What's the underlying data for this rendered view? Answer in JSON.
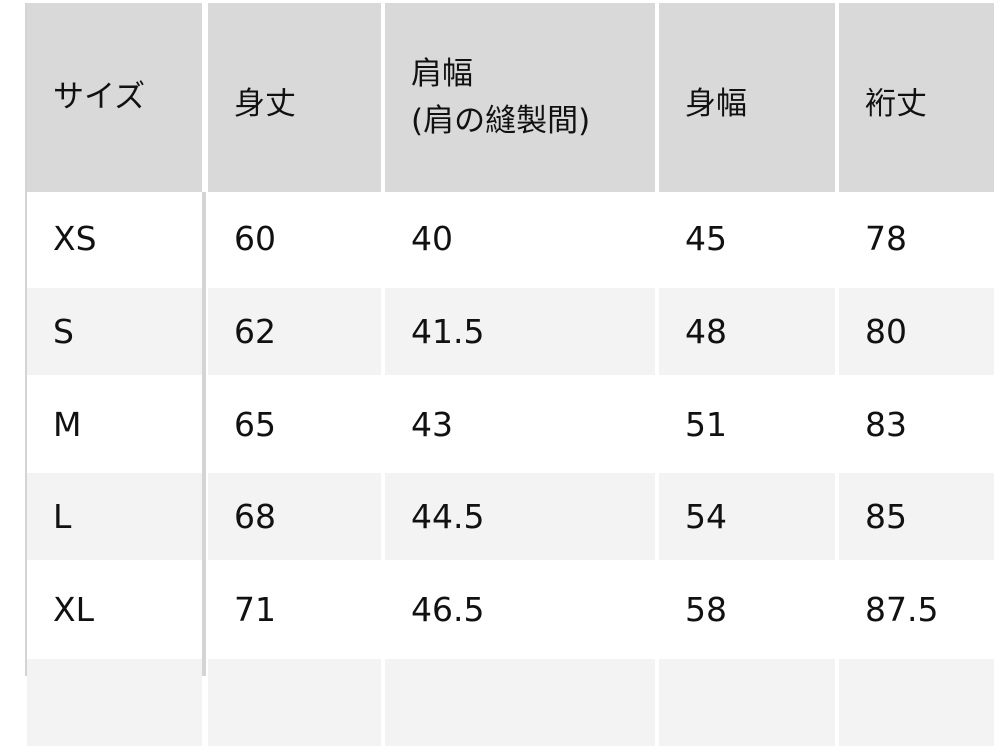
{
  "table": {
    "headers": [
      "サイズ",
      "身丈",
      "肩幅\n(肩の縫製間)",
      "身幅",
      "裄丈"
    ],
    "header_shoulder_line1": "肩幅",
    "header_shoulder_line2": "(肩の縫製間)",
    "rows": [
      [
        "XS",
        "60",
        "40",
        "45",
        "78"
      ],
      [
        "S",
        "62",
        "41.5",
        "48",
        "80"
      ],
      [
        "M",
        "65",
        "43",
        "51",
        "83"
      ],
      [
        "L",
        "68",
        "44.5",
        "54",
        "85"
      ],
      [
        "XL",
        "71",
        "46.5",
        "58",
        "87.5"
      ]
    ]
  },
  "colors": {
    "header_bg": "#d9d9d9",
    "stripe_bg": "#f3f3f3",
    "border": "#d4d4d4"
  }
}
